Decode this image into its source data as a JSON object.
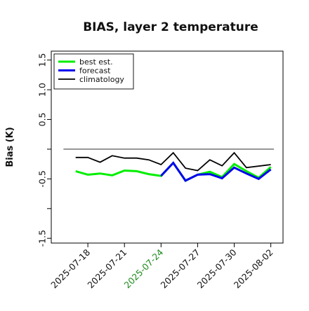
{
  "chart_data": {
    "type": "line",
    "title": "BIAS, layer 2 temperature",
    "ylabel": "Bias (K)",
    "xlabel": "",
    "x": [
      "2025-07-16",
      "2025-07-17",
      "2025-07-18",
      "2025-07-19",
      "2025-07-20",
      "2025-07-21",
      "2025-07-22",
      "2025-07-23",
      "2025-07-24",
      "2025-07-25",
      "2025-07-26",
      "2025-07-27",
      "2025-07-28",
      "2025-07-29",
      "2025-07-30",
      "2025-07-31",
      "2025-08-01",
      "2025-08-02"
    ],
    "xlim": [
      "2025-07-15",
      "2025-08-03"
    ],
    "ylim": [
      -1.58,
      1.65
    ],
    "yticks": [
      -1.5,
      -1.0,
      -0.5,
      0.0,
      0.5,
      1.0,
      1.5
    ],
    "ytick_labels": [
      "-1.5",
      "",
      "-0.5",
      "",
      "0.5",
      "1.0",
      "1.5"
    ],
    "xticks": [
      "2025-07-18",
      "2025-07-21",
      "2025-07-24",
      "2025-07-27",
      "2025-07-30",
      "2025-08-02"
    ],
    "xtick_labels": [
      "2025-07-18",
      "2025-07-21",
      "2025-07-24",
      "2025-07-27",
      "2025-07-30",
      "2025-08-02"
    ],
    "highlight_xtick": "2025-07-24",
    "highlight_color": "#1e8c1e",
    "zero_line": 0.0,
    "legend_position": "upper left",
    "grid": false,
    "series": [
      {
        "name": "best est.",
        "color": "#00ee00",
        "width": 3,
        "x": [
          "2025-07-17",
          "2025-07-18",
          "2025-07-19",
          "2025-07-20",
          "2025-07-21",
          "2025-07-22",
          "2025-07-23",
          "2025-07-24",
          "2025-07-25",
          "2025-07-26",
          "2025-07-27",
          "2025-07-28",
          "2025-07-29",
          "2025-07-30",
          "2025-07-31",
          "2025-08-01",
          "2025-08-02"
        ],
        "values": [
          -0.37,
          -0.43,
          -0.41,
          -0.44,
          -0.36,
          -0.37,
          -0.42,
          -0.45,
          -0.23,
          -0.53,
          -0.43,
          -0.38,
          -0.47,
          -0.25,
          -0.37,
          -0.48,
          -0.3
        ]
      },
      {
        "name": "forecast",
        "color": "#0000ee",
        "width": 3,
        "x": [
          "2025-07-24",
          "2025-07-25",
          "2025-07-26",
          "2025-07-27",
          "2025-07-28",
          "2025-07-29",
          "2025-07-30",
          "2025-07-31",
          "2025-08-01",
          "2025-08-02"
        ],
        "values": [
          -0.45,
          -0.23,
          -0.53,
          -0.43,
          -0.42,
          -0.49,
          -0.31,
          -0.41,
          -0.5,
          -0.34
        ]
      },
      {
        "name": "climatology",
        "color": "#000000",
        "width": 1.8,
        "x": [
          "2025-07-17",
          "2025-07-18",
          "2025-07-19",
          "2025-07-20",
          "2025-07-21",
          "2025-07-22",
          "2025-07-23",
          "2025-07-24",
          "2025-07-25",
          "2025-07-26",
          "2025-07-27",
          "2025-07-28",
          "2025-07-29",
          "2025-07-30",
          "2025-07-31",
          "2025-08-02"
        ],
        "values": [
          -0.14,
          -0.14,
          -0.22,
          -0.11,
          -0.15,
          -0.15,
          -0.18,
          -0.26,
          -0.06,
          -0.32,
          -0.36,
          -0.18,
          -0.28,
          -0.06,
          -0.31,
          -0.26
        ]
      }
    ]
  }
}
